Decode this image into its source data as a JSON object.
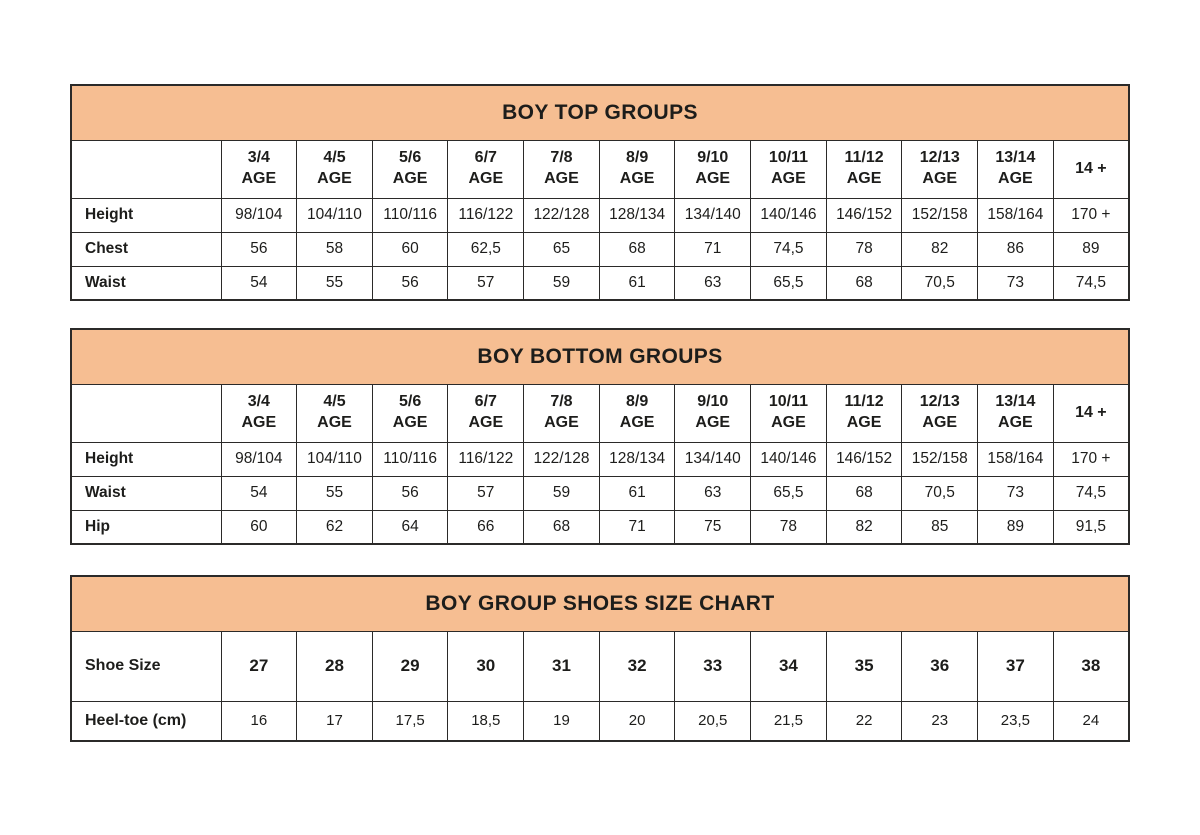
{
  "colors": {
    "band_bg": "#F6BE92",
    "border": "#2B2A29",
    "text": "#1D1D1B",
    "page_bg": "#FFFFFF"
  },
  "tables": [
    {
      "id": "boy-top-groups",
      "title": "BOY TOP GROUPS",
      "column_headers": [
        [
          "3/4",
          "AGE"
        ],
        [
          "4/5",
          "AGE"
        ],
        [
          "5/6",
          "AGE"
        ],
        [
          "6/7",
          "AGE"
        ],
        [
          "7/8",
          "AGE"
        ],
        [
          "8/9",
          "AGE"
        ],
        [
          "9/10",
          "AGE"
        ],
        [
          "10/11",
          "AGE"
        ],
        [
          "11/12",
          "AGE"
        ],
        [
          "12/13",
          "AGE"
        ],
        [
          "13/14",
          "AGE"
        ],
        [
          "14 +"
        ]
      ],
      "rows": [
        {
          "label": "Height",
          "values": [
            "98/104",
            "104/110",
            "110/116",
            "116/122",
            "122/128",
            "128/134",
            "134/140",
            "140/146",
            "146/152",
            "152/158",
            "158/164",
            "170 +"
          ]
        },
        {
          "label": "Chest",
          "values": [
            "56",
            "58",
            "60",
            "62,5",
            "65",
            "68",
            "71",
            "74,5",
            "78",
            "82",
            "86",
            "89"
          ]
        },
        {
          "label": "Waist",
          "values": [
            "54",
            "55",
            "56",
            "57",
            "59",
            "61",
            "63",
            "65,5",
            "68",
            "70,5",
            "73",
            "74,5"
          ]
        }
      ]
    },
    {
      "id": "boy-bottom-groups",
      "title": "BOY BOTTOM GROUPS",
      "column_headers": [
        [
          "3/4",
          "AGE"
        ],
        [
          "4/5",
          "AGE"
        ],
        [
          "5/6",
          "AGE"
        ],
        [
          "6/7",
          "AGE"
        ],
        [
          "7/8",
          "AGE"
        ],
        [
          "8/9",
          "AGE"
        ],
        [
          "9/10",
          "AGE"
        ],
        [
          "10/11",
          "AGE"
        ],
        [
          "11/12",
          "AGE"
        ],
        [
          "12/13",
          "AGE"
        ],
        [
          "13/14",
          "AGE"
        ],
        [
          "14 +"
        ]
      ],
      "rows": [
        {
          "label": "Height",
          "values": [
            "98/104",
            "104/110",
            "110/116",
            "116/122",
            "122/128",
            "128/134",
            "134/140",
            "140/146",
            "146/152",
            "152/158",
            "158/164",
            "170 +"
          ]
        },
        {
          "label": "Waist",
          "values": [
            "54",
            "55",
            "56",
            "57",
            "59",
            "61",
            "63",
            "65,5",
            "68",
            "70,5",
            "73",
            "74,5"
          ]
        },
        {
          "label": "Hip",
          "values": [
            "60",
            "62",
            "64",
            "66",
            "68",
            "71",
            "75",
            "78",
            "82",
            "85",
            "89",
            "91,5"
          ]
        }
      ]
    },
    {
      "id": "boy-group-shoes-size-chart",
      "title": "BOY GROUP SHOES SIZE CHART",
      "rows": [
        {
          "label": "Shoe Size",
          "values": [
            "27",
            "28",
            "29",
            "30",
            "31",
            "32",
            "33",
            "34",
            "35",
            "36",
            "37",
            "38"
          ]
        },
        {
          "label": "Heel-toe (cm)",
          "values": [
            "16",
            "17",
            "17,5",
            "18,5",
            "19",
            "20",
            "20,5",
            "21,5",
            "22",
            "23",
            "23,5",
            "24"
          ]
        }
      ]
    }
  ]
}
